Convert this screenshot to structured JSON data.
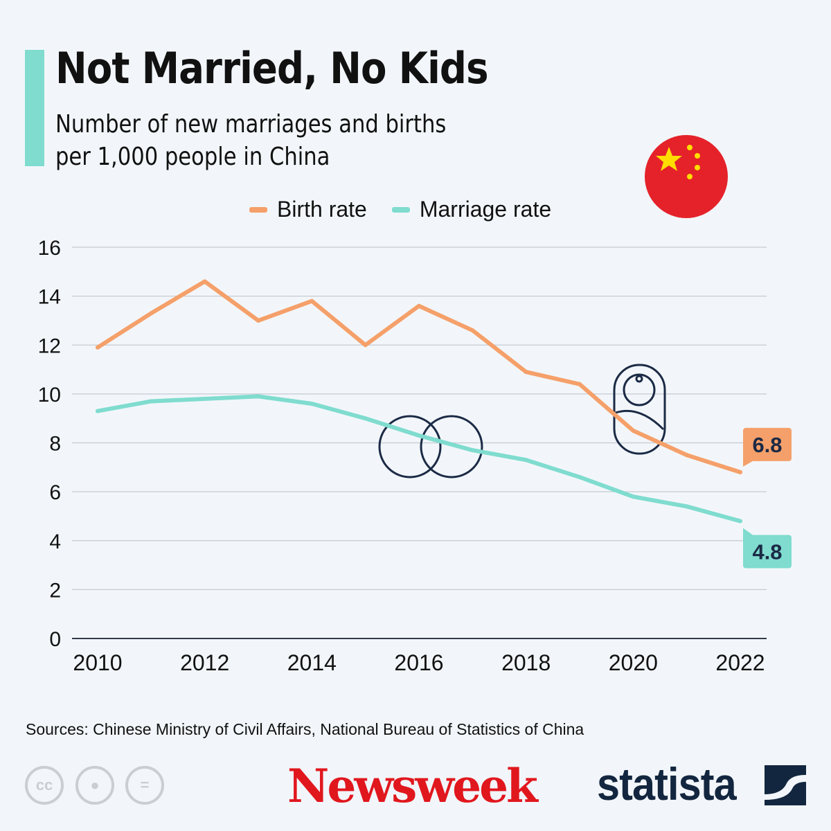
{
  "header": {
    "title": "Not Married, No Kids",
    "subtitle_line1": "Number of new marriages and births",
    "subtitle_line2": "per 1,000 people in China"
  },
  "flag_icon": "china-flag-icon",
  "chart_data": {
    "type": "line",
    "x": [
      2010,
      2011,
      2012,
      2013,
      2014,
      2015,
      2016,
      2017,
      2018,
      2019,
      2020,
      2021,
      2022
    ],
    "x_ticks": [
      "2010",
      "2012",
      "2014",
      "2016",
      "2018",
      "2020",
      "2022"
    ],
    "y_ticks": [
      "0",
      "2",
      "4",
      "6",
      "8",
      "10",
      "12",
      "14",
      "16"
    ],
    "ylim": [
      0,
      16
    ],
    "grid": true,
    "legend_position": "top",
    "series": [
      {
        "name": "Birth rate",
        "color": "#f5a06a",
        "values": [
          11.9,
          13.3,
          14.6,
          13.0,
          13.8,
          12.0,
          13.6,
          12.6,
          10.9,
          10.4,
          8.5,
          7.5,
          6.8
        ],
        "end_label": "6.8"
      },
      {
        "name": "Marriage rate",
        "color": "#7fdccf",
        "values": [
          9.3,
          9.7,
          9.8,
          9.9,
          9.6,
          9.0,
          8.3,
          7.7,
          7.3,
          6.6,
          5.8,
          5.4,
          4.8
        ],
        "end_label": "4.8"
      }
    ],
    "annotations_icons": [
      "wedding-rings-icon",
      "baby-icon"
    ]
  },
  "footer": {
    "source": "Sources: Chinese Ministry of Civil Affairs, National Bureau of Statistics of China",
    "cc": "cc",
    "newsweek": "Newsweek",
    "statista": "statista"
  }
}
